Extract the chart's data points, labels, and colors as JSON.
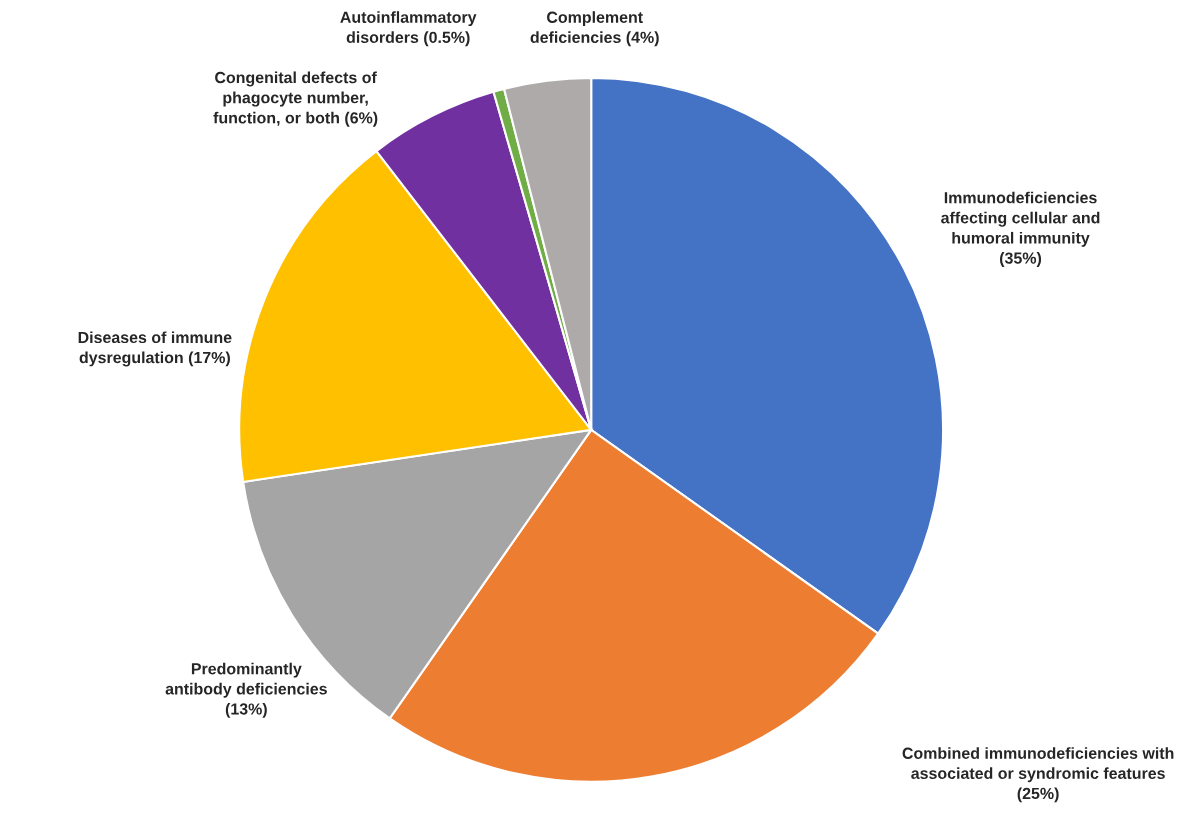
{
  "chart_data": {
    "type": "pie",
    "categories": [
      "Immunodeficiencies\naffecting cellular and\nhumoral immunity\n(35%)",
      "Combined immunodeficiencies with\nassociated or syndromic features\n(25%)",
      "Predominantly\nantibody deficiencies\n(13%)",
      "Diseases of immune\ndysregulation (17%)",
      "Congenital defects of\nphagocyte number,\nfunction, or both (6%)",
      "Autoinflammatory\ndisorders (0.5%)",
      "Complement\ndeficiencies (4%)"
    ],
    "values": [
      35,
      25,
      13,
      17,
      6,
      0.5,
      4
    ],
    "colors": [
      "#4472c4",
      "#ed7d31",
      "#a5a5a5",
      "#ffc000",
      "#7030a0",
      "#70ad47",
      "#aeaaaa"
    ]
  }
}
